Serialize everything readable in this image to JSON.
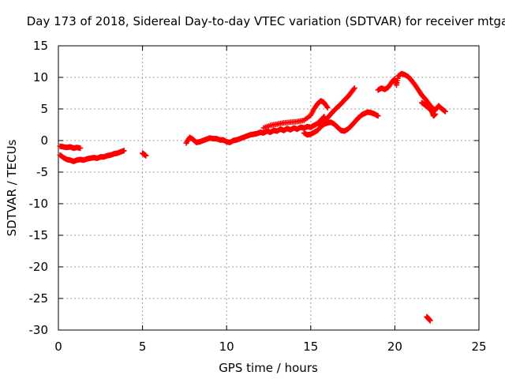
{
  "chart_data": {
    "type": "scatter",
    "title": "Day 173 of 2018, Sidereal Day-to-day VTEC variation (SDTVAR) for receiver mtga",
    "xlabel": "GPS time / hours",
    "ylabel": "SDTVAR / TECUs",
    "xlim": [
      0,
      25
    ],
    "ylim": [
      -30,
      15
    ],
    "xticks": [
      0,
      5,
      10,
      15,
      20,
      25
    ],
    "yticks": [
      -30,
      -25,
      -20,
      -15,
      -10,
      -5,
      0,
      5,
      10,
      15
    ],
    "grid": true,
    "marker": "+",
    "color": "#ff0000",
    "series": [
      {
        "name": "arc-1",
        "points": [
          [
            0.1,
            -0.9
          ],
          [
            0.3,
            -1.0
          ],
          [
            0.5,
            -1.1
          ],
          [
            0.7,
            -1.0
          ],
          [
            0.9,
            -1.2
          ],
          [
            1.1,
            -1.1
          ],
          [
            1.3,
            -1.2
          ]
        ]
      },
      {
        "name": "arc-2",
        "points": [
          [
            0.1,
            -2.3
          ],
          [
            0.3,
            -2.7
          ],
          [
            0.5,
            -3.0
          ],
          [
            0.7,
            -3.1
          ],
          [
            0.9,
            -3.3
          ],
          [
            1.1,
            -3.1
          ],
          [
            1.3,
            -3.0
          ],
          [
            1.5,
            -3.1
          ],
          [
            1.7,
            -2.9
          ],
          [
            1.9,
            -2.8
          ],
          [
            2.1,
            -2.7
          ],
          [
            2.3,
            -2.8
          ],
          [
            2.5,
            -2.6
          ],
          [
            2.7,
            -2.6
          ],
          [
            2.9,
            -2.4
          ],
          [
            3.1,
            -2.3
          ],
          [
            3.3,
            -2.1
          ],
          [
            3.5,
            -2.0
          ],
          [
            3.7,
            -1.8
          ],
          [
            3.9,
            -1.6
          ]
        ]
      },
      {
        "name": "arc-3",
        "points": [
          [
            5.0,
            -2.0
          ],
          [
            5.1,
            -2.2
          ],
          [
            5.2,
            -2.4
          ]
        ]
      },
      {
        "name": "arc-4",
        "points": [
          [
            7.6,
            -0.4
          ],
          [
            7.8,
            0.5
          ],
          [
            8.0,
            0.2
          ],
          [
            8.2,
            -0.3
          ],
          [
            8.4,
            -0.2
          ],
          [
            8.6,
            0.0
          ],
          [
            8.8,
            0.2
          ],
          [
            9.0,
            0.4
          ],
          [
            9.2,
            0.3
          ],
          [
            9.4,
            0.3
          ],
          [
            9.6,
            0.1
          ],
          [
            9.8,
            0.1
          ],
          [
            10.0,
            -0.2
          ],
          [
            10.2,
            -0.3
          ],
          [
            10.4,
            0.0
          ],
          [
            10.6,
            0.1
          ],
          [
            10.8,
            0.3
          ],
          [
            11.0,
            0.5
          ],
          [
            11.2,
            0.7
          ],
          [
            11.4,
            0.9
          ],
          [
            11.6,
            1.0
          ],
          [
            11.8,
            1.1
          ],
          [
            12.0,
            1.3
          ],
          [
            12.2,
            1.2
          ],
          [
            12.4,
            1.5
          ],
          [
            12.6,
            1.3
          ],
          [
            12.8,
            1.6
          ],
          [
            13.0,
            1.5
          ],
          [
            13.2,
            1.8
          ],
          [
            13.4,
            1.6
          ],
          [
            13.6,
            1.9
          ],
          [
            13.8,
            1.7
          ],
          [
            14.0,
            2.0
          ],
          [
            14.2,
            1.8
          ],
          [
            14.4,
            2.1
          ],
          [
            14.6,
            2.0
          ],
          [
            14.8,
            2.2
          ],
          [
            15.0,
            2.1
          ],
          [
            15.2,
            2.4
          ],
          [
            15.4,
            2.7
          ],
          [
            15.6,
            3.2
          ],
          [
            15.8,
            3.8
          ]
        ]
      },
      {
        "name": "arc-5",
        "points": [
          [
            12.2,
            2.0
          ],
          [
            12.6,
            2.4
          ],
          [
            13.0,
            2.6
          ],
          [
            13.4,
            2.8
          ],
          [
            13.8,
            2.9
          ],
          [
            14.2,
            3.0
          ],
          [
            14.6,
            3.2
          ],
          [
            15.0,
            4.0
          ],
          [
            15.2,
            5.0
          ],
          [
            15.4,
            5.8
          ],
          [
            15.6,
            6.3
          ],
          [
            15.8,
            6.0
          ],
          [
            16.0,
            5.2
          ]
        ]
      },
      {
        "name": "arc-6",
        "points": [
          [
            14.6,
            1.2
          ],
          [
            14.8,
            0.9
          ],
          [
            15.0,
            1.0
          ],
          [
            15.2,
            1.3
          ],
          [
            15.4,
            1.6
          ],
          [
            15.6,
            2.2
          ],
          [
            15.8,
            2.6
          ],
          [
            16.0,
            2.8
          ],
          [
            16.2,
            2.9
          ],
          [
            16.4,
            2.6
          ],
          [
            16.6,
            2.1
          ],
          [
            16.8,
            1.6
          ],
          [
            17.0,
            1.5
          ],
          [
            17.2,
            1.8
          ],
          [
            17.4,
            2.3
          ],
          [
            17.6,
            2.9
          ],
          [
            17.8,
            3.5
          ],
          [
            18.0,
            4.0
          ],
          [
            18.2,
            4.3
          ],
          [
            18.4,
            4.5
          ],
          [
            18.6,
            4.4
          ],
          [
            18.8,
            4.2
          ],
          [
            19.0,
            3.9
          ]
        ]
      },
      {
        "name": "arc-7",
        "points": [
          [
            15.6,
            2.4
          ],
          [
            15.8,
            2.9
          ],
          [
            16.0,
            3.6
          ],
          [
            16.2,
            4.2
          ],
          [
            16.4,
            4.8
          ],
          [
            16.6,
            5.3
          ],
          [
            16.8,
            5.8
          ],
          [
            17.0,
            6.4
          ],
          [
            17.2,
            6.9
          ],
          [
            17.4,
            7.6
          ],
          [
            17.6,
            8.3
          ]
        ]
      },
      {
        "name": "arc-8",
        "points": [
          [
            19.0,
            8.0
          ],
          [
            19.2,
            8.3
          ],
          [
            19.4,
            8.1
          ],
          [
            19.6,
            8.4
          ],
          [
            19.8,
            9.2
          ],
          [
            20.0,
            9.8
          ],
          [
            20.1,
            8.8
          ],
          [
            20.2,
            10.2
          ],
          [
            20.4,
            10.6
          ],
          [
            20.6,
            10.4
          ],
          [
            20.8,
            10.1
          ],
          [
            21.0,
            9.5
          ],
          [
            21.2,
            8.8
          ],
          [
            21.4,
            8.0
          ],
          [
            21.6,
            7.2
          ],
          [
            21.8,
            6.6
          ],
          [
            22.0,
            5.9
          ],
          [
            22.2,
            5.2
          ],
          [
            22.4,
            4.8
          ],
          [
            22.6,
            5.5
          ],
          [
            22.8,
            5.0
          ],
          [
            23.0,
            4.6
          ]
        ]
      },
      {
        "name": "arc-9",
        "points": [
          [
            21.6,
            6.0
          ],
          [
            21.8,
            5.6
          ],
          [
            22.0,
            5.2
          ],
          [
            22.2,
            4.6
          ],
          [
            22.3,
            3.9
          ],
          [
            22.4,
            4.2
          ]
        ]
      },
      {
        "name": "arc-10",
        "points": [
          [
            21.9,
            -27.9
          ],
          [
            22.0,
            -28.2
          ],
          [
            22.1,
            -28.5
          ]
        ]
      }
    ]
  }
}
